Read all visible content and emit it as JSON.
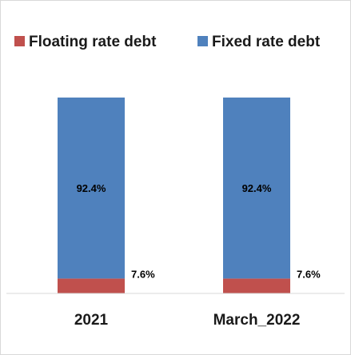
{
  "chart_data": {
    "type": "bar",
    "stacked": true,
    "categories": [
      "2021",
      "March_2022"
    ],
    "series": [
      {
        "name": "Floating rate debt",
        "values": [
          7.6,
          7.6
        ],
        "labels": [
          "7.6%",
          "7.6%"
        ],
        "color": "#c0504d"
      },
      {
        "name": "Fixed rate debt",
        "values": [
          92.4,
          92.4
        ],
        "labels": [
          "92.4%",
          "92.4%"
        ],
        "color": "#4f81bd"
      }
    ],
    "ylim": [
      0,
      100
    ],
    "legend": "top",
    "grid": false,
    "axis_color": "#d9d9d9"
  }
}
